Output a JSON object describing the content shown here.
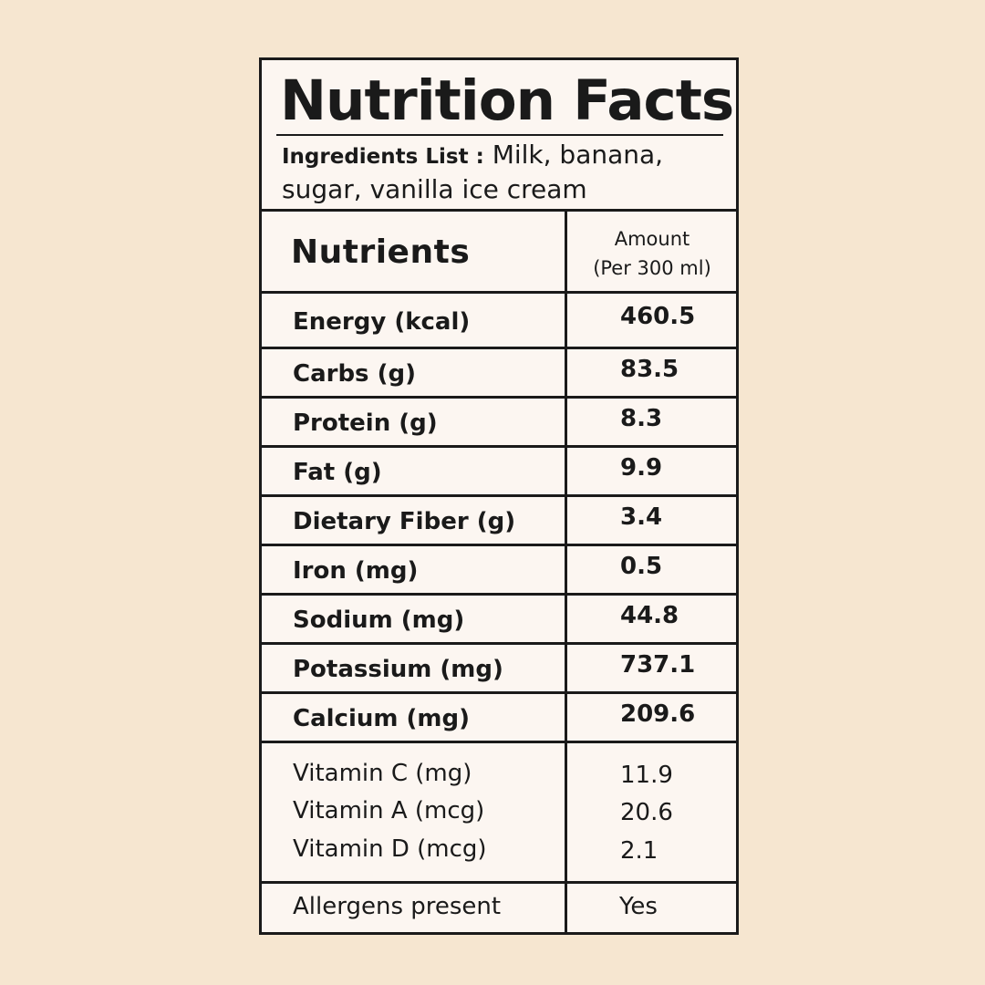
{
  "label": {
    "title": "Nutrition Facts",
    "ingredients_label": "Ingredients List :",
    "ingredients_text": "Milk, banana, sugar, vanilla ice cream"
  },
  "table": {
    "header_nutrients": "Nutrients",
    "header_amount_line1": "Amount",
    "header_amount_line2": "(Per 300 ml)",
    "rows": [
      {
        "name": "Energy (kcal)",
        "value": "460.5"
      },
      {
        "name": "Carbs (g)",
        "value": "83.5"
      },
      {
        "name": "Protein (g)",
        "value": "8.3"
      },
      {
        "name": "Fat (g)",
        "value": "9.9"
      },
      {
        "name": "Dietary Fiber (g)",
        "value": "3.4"
      },
      {
        "name": "Iron (mg)",
        "value": "0.5"
      },
      {
        "name": "Sodium (mg)",
        "value": "44.8"
      },
      {
        "name": "Potassium (mg)",
        "value": "737.1"
      },
      {
        "name": "Calcium (mg)",
        "value": "209.6"
      }
    ],
    "vitamins": [
      {
        "name": "Vitamin C (mg)",
        "value": "11.9"
      },
      {
        "name": "Vitamin A (mcg)",
        "value": "20.6"
      },
      {
        "name": "Vitamin D (mcg)",
        "value": "2.1"
      }
    ],
    "allergens": {
      "name": "Allergens present",
      "value": "Yes"
    }
  },
  "colors": {
    "background": "#f6e6d0",
    "panel": "#fcf6f1",
    "ink": "#1a1a1a"
  }
}
